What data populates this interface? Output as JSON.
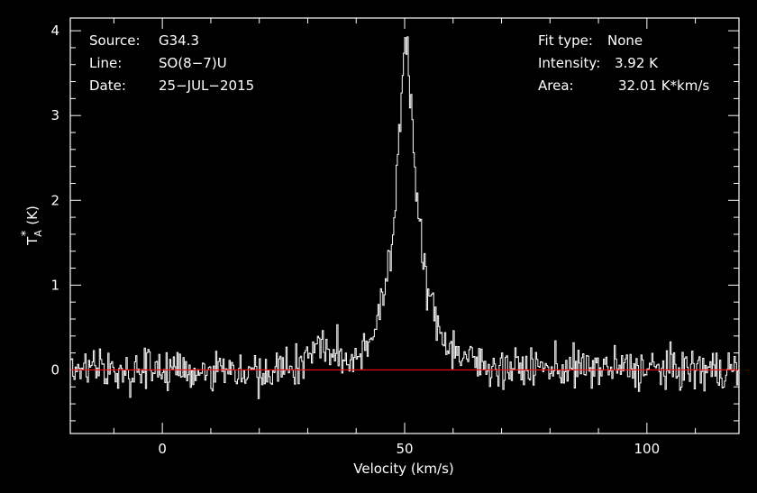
{
  "info_left": [
    {
      "key": "Source:",
      "value": "G34.3"
    },
    {
      "key": "Line:",
      "value": "SO(8−7)U"
    },
    {
      "key": "Date:",
      "value": "25−JUL−2015"
    }
  ],
  "info_right": [
    {
      "key": "Fit type:",
      "value": "None"
    },
    {
      "key": "Intensity:",
      "value": "3.92 K"
    },
    {
      "key": "Area:",
      "value": "32.01 K*km/s"
    }
  ],
  "colors": {
    "background": "#000000",
    "axes": "#ffffff",
    "spectrum": "#ffffff",
    "baseline": "#ff0000"
  },
  "chart_data": {
    "type": "line",
    "title": "",
    "xlabel": "Velocity (km/s)",
    "ylabel": "T_A^* (K)",
    "ylabel_main": "T",
    "ylabel_sub": "A",
    "ylabel_sup": "*",
    "ylabel_unit": "(K)",
    "xlim": [
      -19,
      119
    ],
    "ylim": [
      -0.75,
      4.15
    ],
    "x_ticks": [
      0,
      50,
      100
    ],
    "y_ticks": [
      0,
      1,
      2,
      3,
      4
    ],
    "grid": false,
    "step_style": true,
    "baseline_y": 0,
    "peak": {
      "x": 50.2,
      "y": 3.92
    },
    "x_range": [
      -19,
      119
    ],
    "channel_width": 0.25,
    "series": [
      {
        "name": "",
        "style": "step",
        "x": [
          -19,
          0,
          20,
          28,
          30,
          33,
          36,
          38,
          40,
          42,
          43,
          44,
          45,
          46,
          47,
          47.5,
          48,
          48.5,
          49,
          49.5,
          50,
          50.3,
          50.6,
          51,
          51.5,
          52,
          52.5,
          53,
          53.5,
          54,
          55,
          56,
          57,
          58,
          59,
          60,
          62,
          65,
          70,
          119
        ],
        "y": [
          0,
          0,
          0,
          0.05,
          0.2,
          0.3,
          0.15,
          0.1,
          0.18,
          0.28,
          0.4,
          0.55,
          0.75,
          0.95,
          1.25,
          1.5,
          1.9,
          2.4,
          2.9,
          3.45,
          3.85,
          3.92,
          3.8,
          3.45,
          3.0,
          2.5,
          2.05,
          1.7,
          1.42,
          1.2,
          0.9,
          0.68,
          0.5,
          0.4,
          0.32,
          0.25,
          0.16,
          0.08,
          0.03,
          0
        ],
        "noise_rms": 0.12
      }
    ]
  }
}
